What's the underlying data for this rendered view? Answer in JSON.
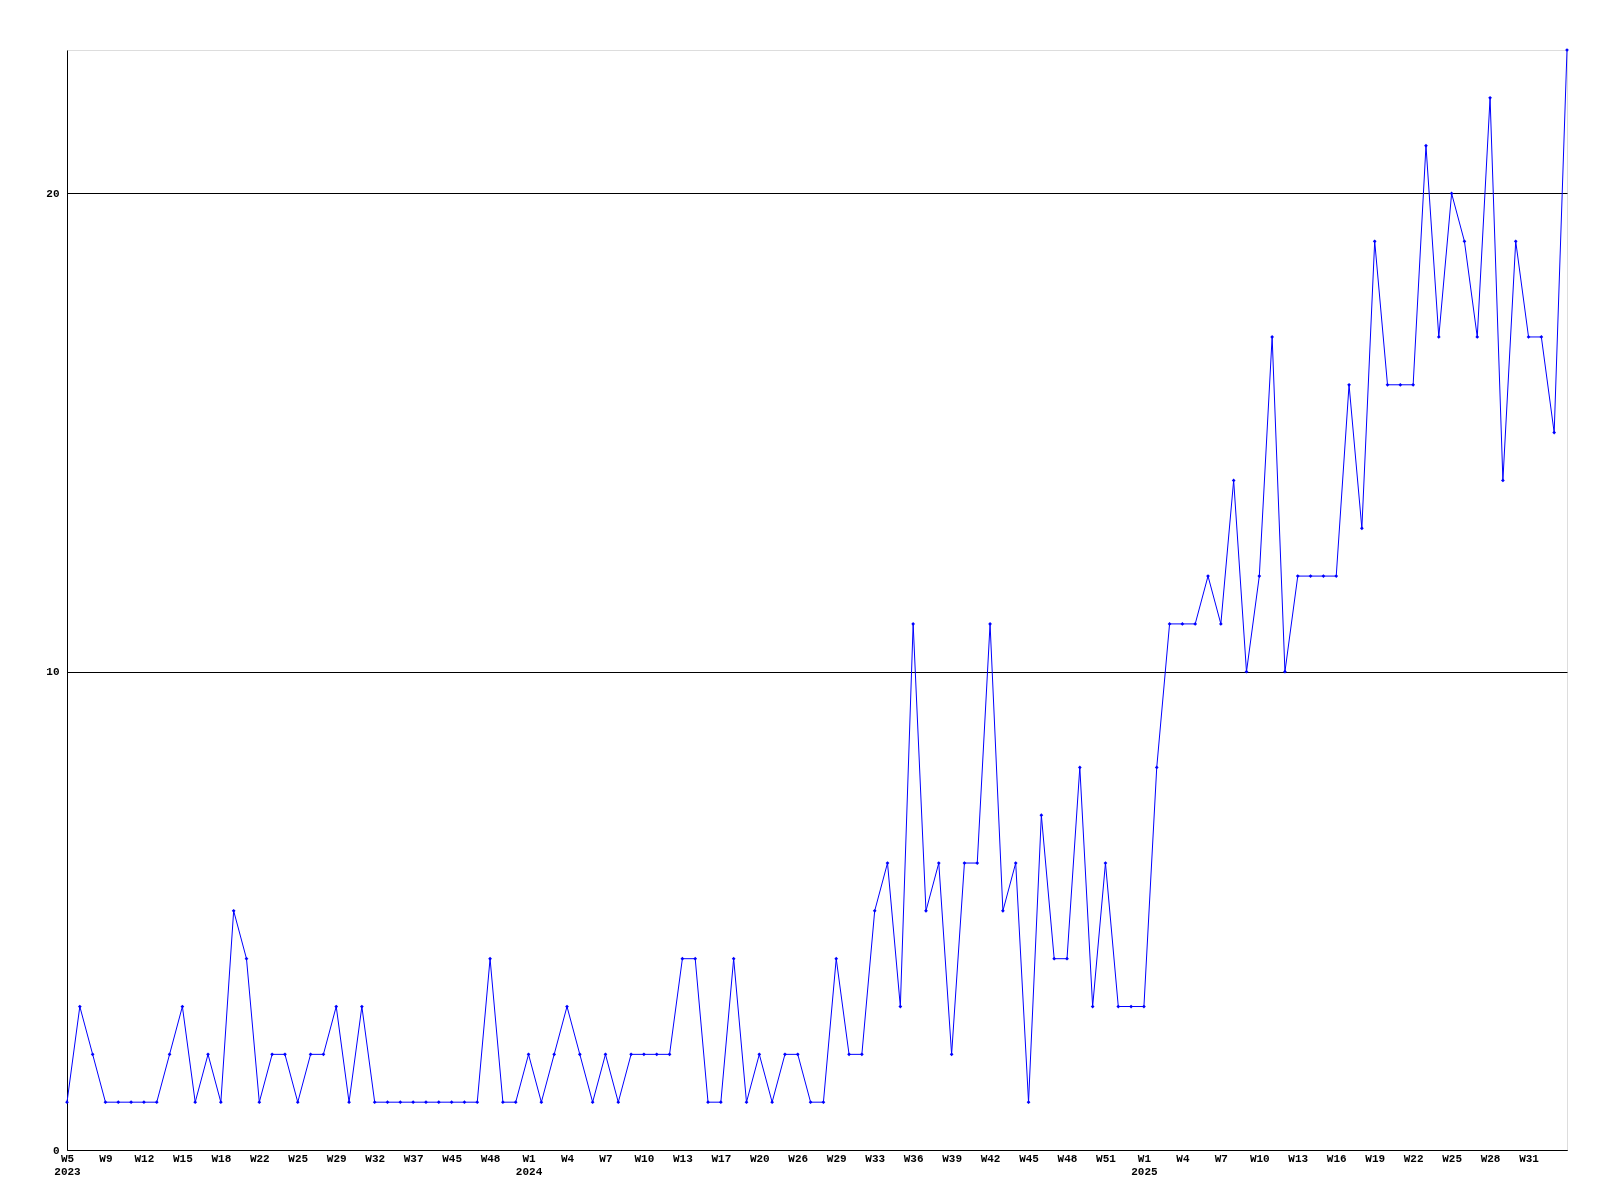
{
  "chart_data": {
    "type": "line",
    "categories": [
      "W5\n2023",
      null,
      null,
      "W9",
      null,
      null,
      "W12",
      null,
      null,
      "W15",
      null,
      null,
      "W18",
      null,
      null,
      "W22",
      null,
      null,
      "W25",
      null,
      null,
      "W29",
      null,
      null,
      "W32",
      null,
      null,
      "W37",
      null,
      null,
      "W45",
      null,
      null,
      "W48",
      null,
      null,
      "W1\n2024",
      null,
      null,
      "W4",
      null,
      null,
      "W7",
      null,
      null,
      "W10",
      null,
      null,
      "W13",
      null,
      null,
      "W17",
      null,
      null,
      "W20",
      null,
      null,
      "W26",
      null,
      null,
      "W29",
      null,
      null,
      "W33",
      null,
      null,
      "W36",
      null,
      null,
      "W39",
      null,
      null,
      "W42",
      null,
      null,
      "W45",
      null,
      null,
      "W48",
      null,
      null,
      "W51",
      null,
      null,
      "W1\n2025",
      null,
      null,
      "W4",
      null,
      null,
      "W7",
      null,
      null,
      "W10",
      null,
      null,
      "W13",
      null,
      null,
      "W16",
      null,
      null,
      "W19",
      null,
      null,
      "W22",
      null,
      null,
      "W25",
      null,
      null,
      "W28",
      null,
      null,
      "W31",
      null,
      null,
      null
    ],
    "series": [
      {
        "color": "#0000ff",
        "values": [
          1,
          3,
          2,
          1,
          1,
          1,
          1,
          1,
          2,
          3,
          1,
          2,
          1,
          5,
          4,
          1,
          2,
          2,
          1,
          2,
          2,
          3,
          1,
          3,
          1,
          1,
          1,
          1,
          1,
          1,
          1,
          1,
          1,
          4,
          1,
          1,
          2,
          1,
          2,
          3,
          2,
          1,
          2,
          1,
          2,
          2,
          2,
          2,
          4,
          4,
          1,
          1,
          4,
          1,
          2,
          1,
          2,
          2,
          1,
          1,
          4,
          2,
          2,
          5,
          6,
          3,
          11,
          5,
          6,
          2,
          6,
          6,
          11,
          5,
          6,
          1,
          7,
          4,
          4,
          8,
          3,
          6,
          3,
          3,
          3,
          8,
          11,
          11,
          11,
          12,
          11,
          14,
          10,
          12,
          17,
          10,
          12,
          12,
          12,
          12,
          16,
          13,
          19,
          16,
          16,
          16,
          21,
          17,
          20,
          19,
          17,
          22,
          14,
          19,
          17,
          17,
          15,
          23
        ]
      }
    ],
    "ylim": [
      0,
      23
    ],
    "yticks": [
      0,
      10,
      20
    ],
    "grid": "y",
    "marker": "diamond",
    "line_style": "solid"
  }
}
